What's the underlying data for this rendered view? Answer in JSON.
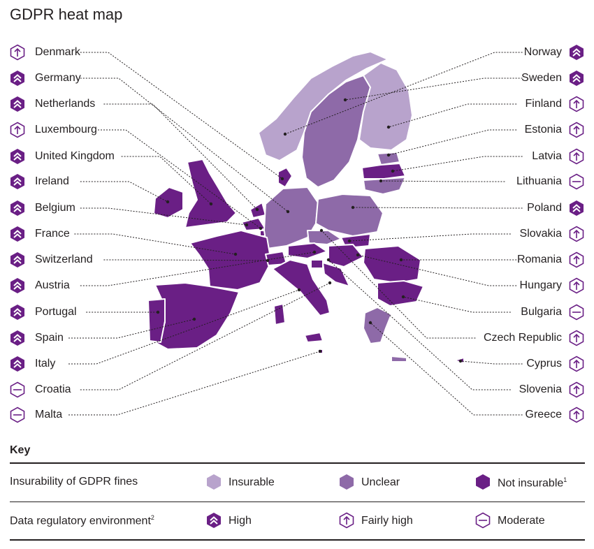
{
  "title": "GDPR heat map",
  "colors": {
    "insurable": "#b8a3cc",
    "unclear": "#8e6aa8",
    "not_insurable": "#6a1f85",
    "icon": "#6a1f85",
    "leader": "#231f20"
  },
  "countries_left": [
    {
      "name": "Denmark",
      "regulatory": "fairly-high",
      "insurability": "not-insurable"
    },
    {
      "name": "Germany",
      "regulatory": "high",
      "insurability": "unclear"
    },
    {
      "name": "Netherlands",
      "regulatory": "high",
      "insurability": "not-insurable"
    },
    {
      "name": "Luxembourg",
      "regulatory": "fairly-high",
      "insurability": "not-insurable"
    },
    {
      "name": "United Kingdom",
      "regulatory": "high",
      "insurability": "not-insurable"
    },
    {
      "name": "Ireland",
      "regulatory": "high",
      "insurability": "not-insurable"
    },
    {
      "name": "Belgium",
      "regulatory": "high",
      "insurability": "not-insurable"
    },
    {
      "name": "France",
      "regulatory": "high",
      "insurability": "not-insurable"
    },
    {
      "name": "Switzerland",
      "regulatory": "high",
      "insurability": "not-insurable"
    },
    {
      "name": "Austria",
      "regulatory": "high",
      "insurability": "not-insurable"
    },
    {
      "name": "Portugal",
      "regulatory": "high",
      "insurability": "not-insurable"
    },
    {
      "name": "Spain",
      "regulatory": "high",
      "insurability": "not-insurable"
    },
    {
      "name": "Italy",
      "regulatory": "high",
      "insurability": "not-insurable"
    },
    {
      "name": "Croatia",
      "regulatory": "moderate",
      "insurability": "not-insurable"
    },
    {
      "name": "Malta",
      "regulatory": "moderate",
      "insurability": "not-insurable"
    }
  ],
  "countries_right": [
    {
      "name": "Norway",
      "regulatory": "high",
      "insurability": "insurable"
    },
    {
      "name": "Sweden",
      "regulatory": "high",
      "insurability": "unclear"
    },
    {
      "name": "Finland",
      "regulatory": "fairly-high",
      "insurability": "insurable"
    },
    {
      "name": "Estonia",
      "regulatory": "fairly-high",
      "insurability": "unclear"
    },
    {
      "name": "Latvia",
      "regulatory": "fairly-high",
      "insurability": "not-insurable"
    },
    {
      "name": "Lithuania",
      "regulatory": "moderate",
      "insurability": "unclear"
    },
    {
      "name": "Poland",
      "regulatory": "high",
      "insurability": "unclear"
    },
    {
      "name": "Slovakia",
      "regulatory": "fairly-high",
      "insurability": "not-insurable"
    },
    {
      "name": "Romania",
      "regulatory": "fairly-high",
      "insurability": "not-insurable"
    },
    {
      "name": "Hungary",
      "regulatory": "fairly-high",
      "insurability": "not-insurable"
    },
    {
      "name": "Bulgaria",
      "regulatory": "moderate",
      "insurability": "not-insurable"
    },
    {
      "name": "Czech Republic",
      "regulatory": "fairly-high",
      "insurability": "unclear"
    },
    {
      "name": "Cyprus",
      "regulatory": "fairly-high",
      "insurability": "not-insurable"
    },
    {
      "name": "Slovenia",
      "regulatory": "fairly-high",
      "insurability": "not-insurable"
    },
    {
      "name": "Greece",
      "regulatory": "fairly-high",
      "insurability": "unclear"
    }
  ],
  "key": {
    "title": "Key",
    "insurability_label": "Insurability of GDPR fines",
    "insurable": "Insurable",
    "unclear": "Unclear",
    "not_insurable": "Not insurable",
    "not_insurable_sup": "1",
    "regulatory_label": "Data regulatory environment",
    "regulatory_sup": "2",
    "high": "High",
    "fairly_high": "Fairly high",
    "moderate": "Moderate"
  }
}
